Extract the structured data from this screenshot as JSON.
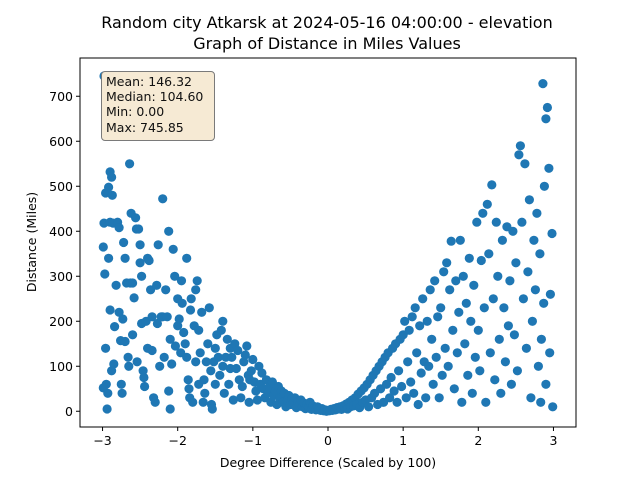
{
  "chart_data": {
    "type": "scatter",
    "title_line1": "Random city Atkarsk at 2024-05-16 04:00:00  - elevation",
    "title_line2": "Graph of Distance in Miles Values",
    "xlabel": "Degree Difference (Scaled by 100)",
    "ylabel": "Distance (Miles)",
    "xlim": [
      -3.3,
      3.3
    ],
    "ylim": [
      -35,
      785
    ],
    "xticks": [
      -3,
      -2,
      -1,
      0,
      1,
      2,
      3
    ],
    "yticks": [
      0,
      100,
      200,
      300,
      400,
      500,
      600,
      700
    ],
    "grid": false,
    "marker_color": "#1f77b4",
    "stats": {
      "mean": "Mean: 146.32",
      "median": "Median: 104.60",
      "min": "Min: 0.00",
      "max": "Max: 745.85"
    },
    "points": [
      [
        -2.98,
        745
      ],
      [
        -2.99,
        365
      ],
      [
        -2.98,
        418
      ],
      [
        -2.97,
        305
      ],
      [
        -2.96,
        140
      ],
      [
        -2.95,
        60
      ],
      [
        -2.99,
        52
      ],
      [
        -2.94,
        5
      ],
      [
        -2.93,
        40
      ],
      [
        -2.96,
        485
      ],
      [
        -2.92,
        498
      ],
      [
        -2.9,
        532
      ],
      [
        -2.88,
        520
      ],
      [
        -2.87,
        480
      ],
      [
        -2.9,
        420
      ],
      [
        -2.86,
        418
      ],
      [
        -2.92,
        340
      ],
      [
        -2.9,
        225
      ],
      [
        -2.88,
        90
      ],
      [
        -2.85,
        105
      ],
      [
        -2.84,
        188
      ],
      [
        -2.82,
        280
      ],
      [
        -2.8,
        420
      ],
      [
        -2.78,
        408
      ],
      [
        -2.78,
        220
      ],
      [
        -2.76,
        157
      ],
      [
        -2.75,
        60
      ],
      [
        -2.74,
        40
      ],
      [
        -2.73,
        205
      ],
      [
        -2.72,
        375
      ],
      [
        -2.7,
        340
      ],
      [
        -2.7,
        155
      ],
      [
        -2.68,
        285
      ],
      [
        -2.66,
        120
      ],
      [
        -2.65,
        100
      ],
      [
        -2.64,
        550
      ],
      [
        -2.63,
        285
      ],
      [
        -2.62,
        440
      ],
      [
        -2.6,
        170
      ],
      [
        -2.6,
        285
      ],
      [
        -2.58,
        252
      ],
      [
        -2.56,
        430
      ],
      [
        -2.55,
        405
      ],
      [
        -2.54,
        110
      ],
      [
        -2.52,
        405
      ],
      [
        -2.5,
        370
      ],
      [
        -2.5,
        330
      ],
      [
        -2.48,
        300
      ],
      [
        -2.48,
        195
      ],
      [
        -2.46,
        90
      ],
      [
        -2.45,
        75
      ],
      [
        -2.44,
        55
      ],
      [
        -2.42,
        200
      ],
      [
        -2.4,
        340
      ],
      [
        -2.4,
        140
      ],
      [
        -2.38,
        335
      ],
      [
        -2.36,
        270
      ],
      [
        -2.34,
        210
      ],
      [
        -2.34,
        135
      ],
      [
        -2.32,
        30
      ],
      [
        -2.3,
        20
      ],
      [
        -2.28,
        280
      ],
      [
        -2.27,
        195
      ],
      [
        -2.26,
        370
      ],
      [
        -2.24,
        100
      ],
      [
        -2.22,
        210
      ],
      [
        -2.2,
        472
      ],
      [
        -2.2,
        210
      ],
      [
        -2.18,
        120
      ],
      [
        -2.16,
        270
      ],
      [
        -2.14,
        210
      ],
      [
        -2.12,
        45
      ],
      [
        -2.12,
        400
      ],
      [
        -2.1,
        5
      ],
      [
        -2.1,
        160
      ],
      [
        -2.08,
        105
      ],
      [
        -2.06,
        360
      ],
      [
        -2.04,
        300
      ],
      [
        -2.03,
        145
      ],
      [
        -2.0,
        190
      ],
      [
        -2.0,
        250
      ],
      [
        -1.98,
        205
      ],
      [
        -1.96,
        130
      ],
      [
        -1.95,
        290
      ],
      [
        -1.94,
        240
      ],
      [
        -1.92,
        175
      ],
      [
        -1.9,
        150
      ],
      [
        -1.88,
        120
      ],
      [
        -1.88,
        340
      ],
      [
        -1.86,
        70
      ],
      [
        -1.85,
        50
      ],
      [
        -1.84,
        30
      ],
      [
        -1.83,
        225
      ],
      [
        -1.82,
        250
      ],
      [
        -1.8,
        20
      ],
      [
        -1.78,
        190
      ],
      [
        -1.76,
        110
      ],
      [
        -1.76,
        270
      ],
      [
        -1.74,
        290
      ],
      [
        -1.72,
        60
      ],
      [
        -1.72,
        180
      ],
      [
        -1.7,
        130
      ],
      [
        -1.68,
        220
      ],
      [
        -1.66,
        20
      ],
      [
        -1.65,
        70
      ],
      [
        -1.64,
        40
      ],
      [
        -1.62,
        110
      ],
      [
        -1.6,
        150
      ],
      [
        -1.58,
        230
      ],
      [
        -1.56,
        90
      ],
      [
        -1.55,
        15
      ],
      [
        -1.54,
        5
      ],
      [
        -1.52,
        110
      ],
      [
        -1.5,
        140
      ],
      [
        -1.5,
        60
      ],
      [
        -1.48,
        170
      ],
      [
        -1.46,
        120
      ],
      [
        -1.44,
        80
      ],
      [
        -1.42,
        180
      ],
      [
        -1.4,
        100
      ],
      [
        -1.4,
        200
      ],
      [
        -1.38,
        40
      ],
      [
        -1.36,
        120
      ],
      [
        -1.34,
        160
      ],
      [
        -1.32,
        60
      ],
      [
        -1.3,
        95
      ],
      [
        -1.3,
        140
      ],
      [
        -1.28,
        120
      ],
      [
        -1.26,
        25
      ],
      [
        -1.24,
        150
      ],
      [
        -1.22,
        95
      ],
      [
        -1.2,
        135
      ],
      [
        -1.18,
        70
      ],
      [
        -1.16,
        30
      ],
      [
        -1.14,
        55
      ],
      [
        -1.12,
        110
      ],
      [
        -1.1,
        125
      ],
      [
        -1.08,
        145
      ],
      [
        -1.06,
        80
      ],
      [
        -1.05,
        20
      ],
      [
        -1.04,
        70
      ],
      [
        -1.02,
        90
      ],
      [
        -1.0,
        115
      ],
      [
        -0.98,
        65
      ],
      [
        -0.96,
        45
      ],
      [
        -0.94,
        25
      ],
      [
        -0.92,
        100
      ],
      [
        -0.9,
        60
      ],
      [
        -0.88,
        85
      ],
      [
        -0.86,
        50
      ],
      [
        -0.84,
        30
      ],
      [
        -0.82,
        70
      ],
      [
        -0.8,
        40
      ],
      [
        -0.78,
        55
      ],
      [
        -0.76,
        20
      ],
      [
        -0.74,
        65
      ],
      [
        -0.72,
        35
      ],
      [
        -0.7,
        45
      ],
      [
        -0.68,
        15
      ],
      [
        -0.66,
        55
      ],
      [
        -0.64,
        30
      ],
      [
        -0.62,
        45
      ],
      [
        -0.6,
        20
      ],
      [
        -0.58,
        40
      ],
      [
        -0.56,
        10
      ],
      [
        -0.54,
        25
      ],
      [
        -0.52,
        35
      ],
      [
        -0.5,
        15
      ],
      [
        -0.48,
        28
      ],
      [
        -0.46,
        18
      ],
      [
        -0.44,
        30
      ],
      [
        -0.42,
        8
      ],
      [
        -0.4,
        22
      ],
      [
        -0.38,
        14
      ],
      [
        -0.36,
        25
      ],
      [
        -0.34,
        10
      ],
      [
        -0.32,
        18
      ],
      [
        -0.3,
        6
      ],
      [
        -0.28,
        15
      ],
      [
        -0.26,
        9
      ],
      [
        -0.24,
        20
      ],
      [
        -0.22,
        4
      ],
      [
        -0.2,
        12
      ],
      [
        -0.18,
        7
      ],
      [
        -0.16,
        3
      ],
      [
        -0.14,
        10
      ],
      [
        -0.12,
        5
      ],
      [
        -0.1,
        2
      ],
      [
        -0.08,
        6
      ],
      [
        -0.06,
        1
      ],
      [
        -0.04,
        3
      ],
      [
        -0.02,
        0
      ],
      [
        0.0,
        2
      ],
      [
        0.02,
        1
      ],
      [
        0.04,
        4
      ],
      [
        0.06,
        2
      ],
      [
        0.08,
        6
      ],
      [
        0.1,
        3
      ],
      [
        0.12,
        8
      ],
      [
        0.14,
        5
      ],
      [
        0.16,
        10
      ],
      [
        0.18,
        4
      ],
      [
        0.2,
        12
      ],
      [
        0.22,
        8
      ],
      [
        0.24,
        16
      ],
      [
        0.26,
        5
      ],
      [
        0.28,
        20
      ],
      [
        0.3,
        10
      ],
      [
        0.32,
        25
      ],
      [
        0.34,
        12
      ],
      [
        0.36,
        30
      ],
      [
        0.38,
        15
      ],
      [
        0.4,
        38
      ],
      [
        0.42,
        8
      ],
      [
        0.44,
        45
      ],
      [
        0.46,
        20
      ],
      [
        0.48,
        52
      ],
      [
        0.5,
        25
      ],
      [
        0.52,
        60
      ],
      [
        0.54,
        10
      ],
      [
        0.56,
        70
      ],
      [
        0.58,
        30
      ],
      [
        0.6,
        80
      ],
      [
        0.62,
        40
      ],
      [
        0.64,
        90
      ],
      [
        0.66,
        15
      ],
      [
        0.68,
        100
      ],
      [
        0.7,
        50
      ],
      [
        0.72,
        110
      ],
      [
        0.74,
        20
      ],
      [
        0.76,
        120
      ],
      [
        0.78,
        60
      ],
      [
        0.8,
        130
      ],
      [
        0.82,
        30
      ],
      [
        0.84,
        75
      ],
      [
        0.86,
        140
      ],
      [
        0.88,
        45
      ],
      [
        0.9,
        150
      ],
      [
        0.92,
        20
      ],
      [
        0.94,
        90
      ],
      [
        0.96,
        160
      ],
      [
        0.98,
        55
      ],
      [
        1.0,
        170
      ],
      [
        1.02,
        200
      ],
      [
        1.04,
        30
      ],
      [
        1.06,
        110
      ],
      [
        1.08,
        180
      ],
      [
        1.1,
        65
      ],
      [
        1.12,
        210
      ],
      [
        1.14,
        40
      ],
      [
        1.16,
        230
      ],
      [
        1.18,
        130
      ],
      [
        1.2,
        15
      ],
      [
        1.22,
        190
      ],
      [
        1.24,
        85
      ],
      [
        1.26,
        250
      ],
      [
        1.28,
        110
      ],
      [
        1.3,
        30
      ],
      [
        1.32,
        200
      ],
      [
        1.34,
        100
      ],
      [
        1.36,
        270
      ],
      [
        1.38,
        160
      ],
      [
        1.4,
        60
      ],
      [
        1.42,
        290
      ],
      [
        1.44,
        120
      ],
      [
        1.46,
        210
      ],
      [
        1.48,
        30
      ],
      [
        1.5,
        230
      ],
      [
        1.52,
        80
      ],
      [
        1.54,
        310
      ],
      [
        1.56,
        140
      ],
      [
        1.58,
        330
      ],
      [
        1.6,
        100
      ],
      [
        1.62,
        270
      ],
      [
        1.64,
        378
      ],
      [
        1.66,
        180
      ],
      [
        1.68,
        50
      ],
      [
        1.7,
        290
      ],
      [
        1.72,
        130
      ],
      [
        1.74,
        220
      ],
      [
        1.76,
        380
      ],
      [
        1.78,
        20
      ],
      [
        1.8,
        300
      ],
      [
        1.82,
        150
      ],
      [
        1.84,
        240
      ],
      [
        1.86,
        80
      ],
      [
        1.88,
        340
      ],
      [
        1.9,
        200
      ],
      [
        1.92,
        40
      ],
      [
        1.94,
        280
      ],
      [
        1.96,
        120
      ],
      [
        1.98,
        420
      ],
      [
        2.0,
        180
      ],
      [
        2.02,
        90
      ],
      [
        2.04,
        335
      ],
      [
        2.06,
        440
      ],
      [
        2.08,
        230
      ],
      [
        2.1,
        20
      ],
      [
        2.12,
        460
      ],
      [
        2.14,
        350
      ],
      [
        2.16,
        130
      ],
      [
        2.18,
        503
      ],
      [
        2.2,
        250
      ],
      [
        2.22,
        70
      ],
      [
        2.24,
        420
      ],
      [
        2.26,
        300
      ],
      [
        2.28,
        160
      ],
      [
        2.3,
        40
      ],
      [
        2.32,
        380
      ],
      [
        2.34,
        230
      ],
      [
        2.36,
        110
      ],
      [
        2.38,
        410
      ],
      [
        2.4,
        190
      ],
      [
        2.42,
        290
      ],
      [
        2.44,
        60
      ],
      [
        2.46,
        400
      ],
      [
        2.48,
        170
      ],
      [
        2.5,
        330
      ],
      [
        2.52,
        90
      ],
      [
        2.54,
        570
      ],
      [
        2.56,
        590
      ],
      [
        2.58,
        420
      ],
      [
        2.6,
        250
      ],
      [
        2.62,
        550
      ],
      [
        2.64,
        140
      ],
      [
        2.66,
        310
      ],
      [
        2.68,
        470
      ],
      [
        2.7,
        30
      ],
      [
        2.72,
        200
      ],
      [
        2.74,
        380
      ],
      [
        2.76,
        270
      ],
      [
        2.78,
        440
      ],
      [
        2.8,
        100
      ],
      [
        2.82,
        350
      ],
      [
        2.84,
        160
      ],
      [
        2.86,
        728
      ],
      [
        2.88,
        500
      ],
      [
        2.9,
        650
      ],
      [
        2.92,
        675
      ],
      [
        2.94,
        540
      ],
      [
        2.96,
        260
      ],
      [
        2.98,
        395
      ],
      [
        2.99,
        10
      ],
      [
        2.95,
        130
      ],
      [
        2.9,
        60
      ],
      [
        2.87,
        240
      ],
      [
        2.83,
        20
      ]
    ]
  }
}
